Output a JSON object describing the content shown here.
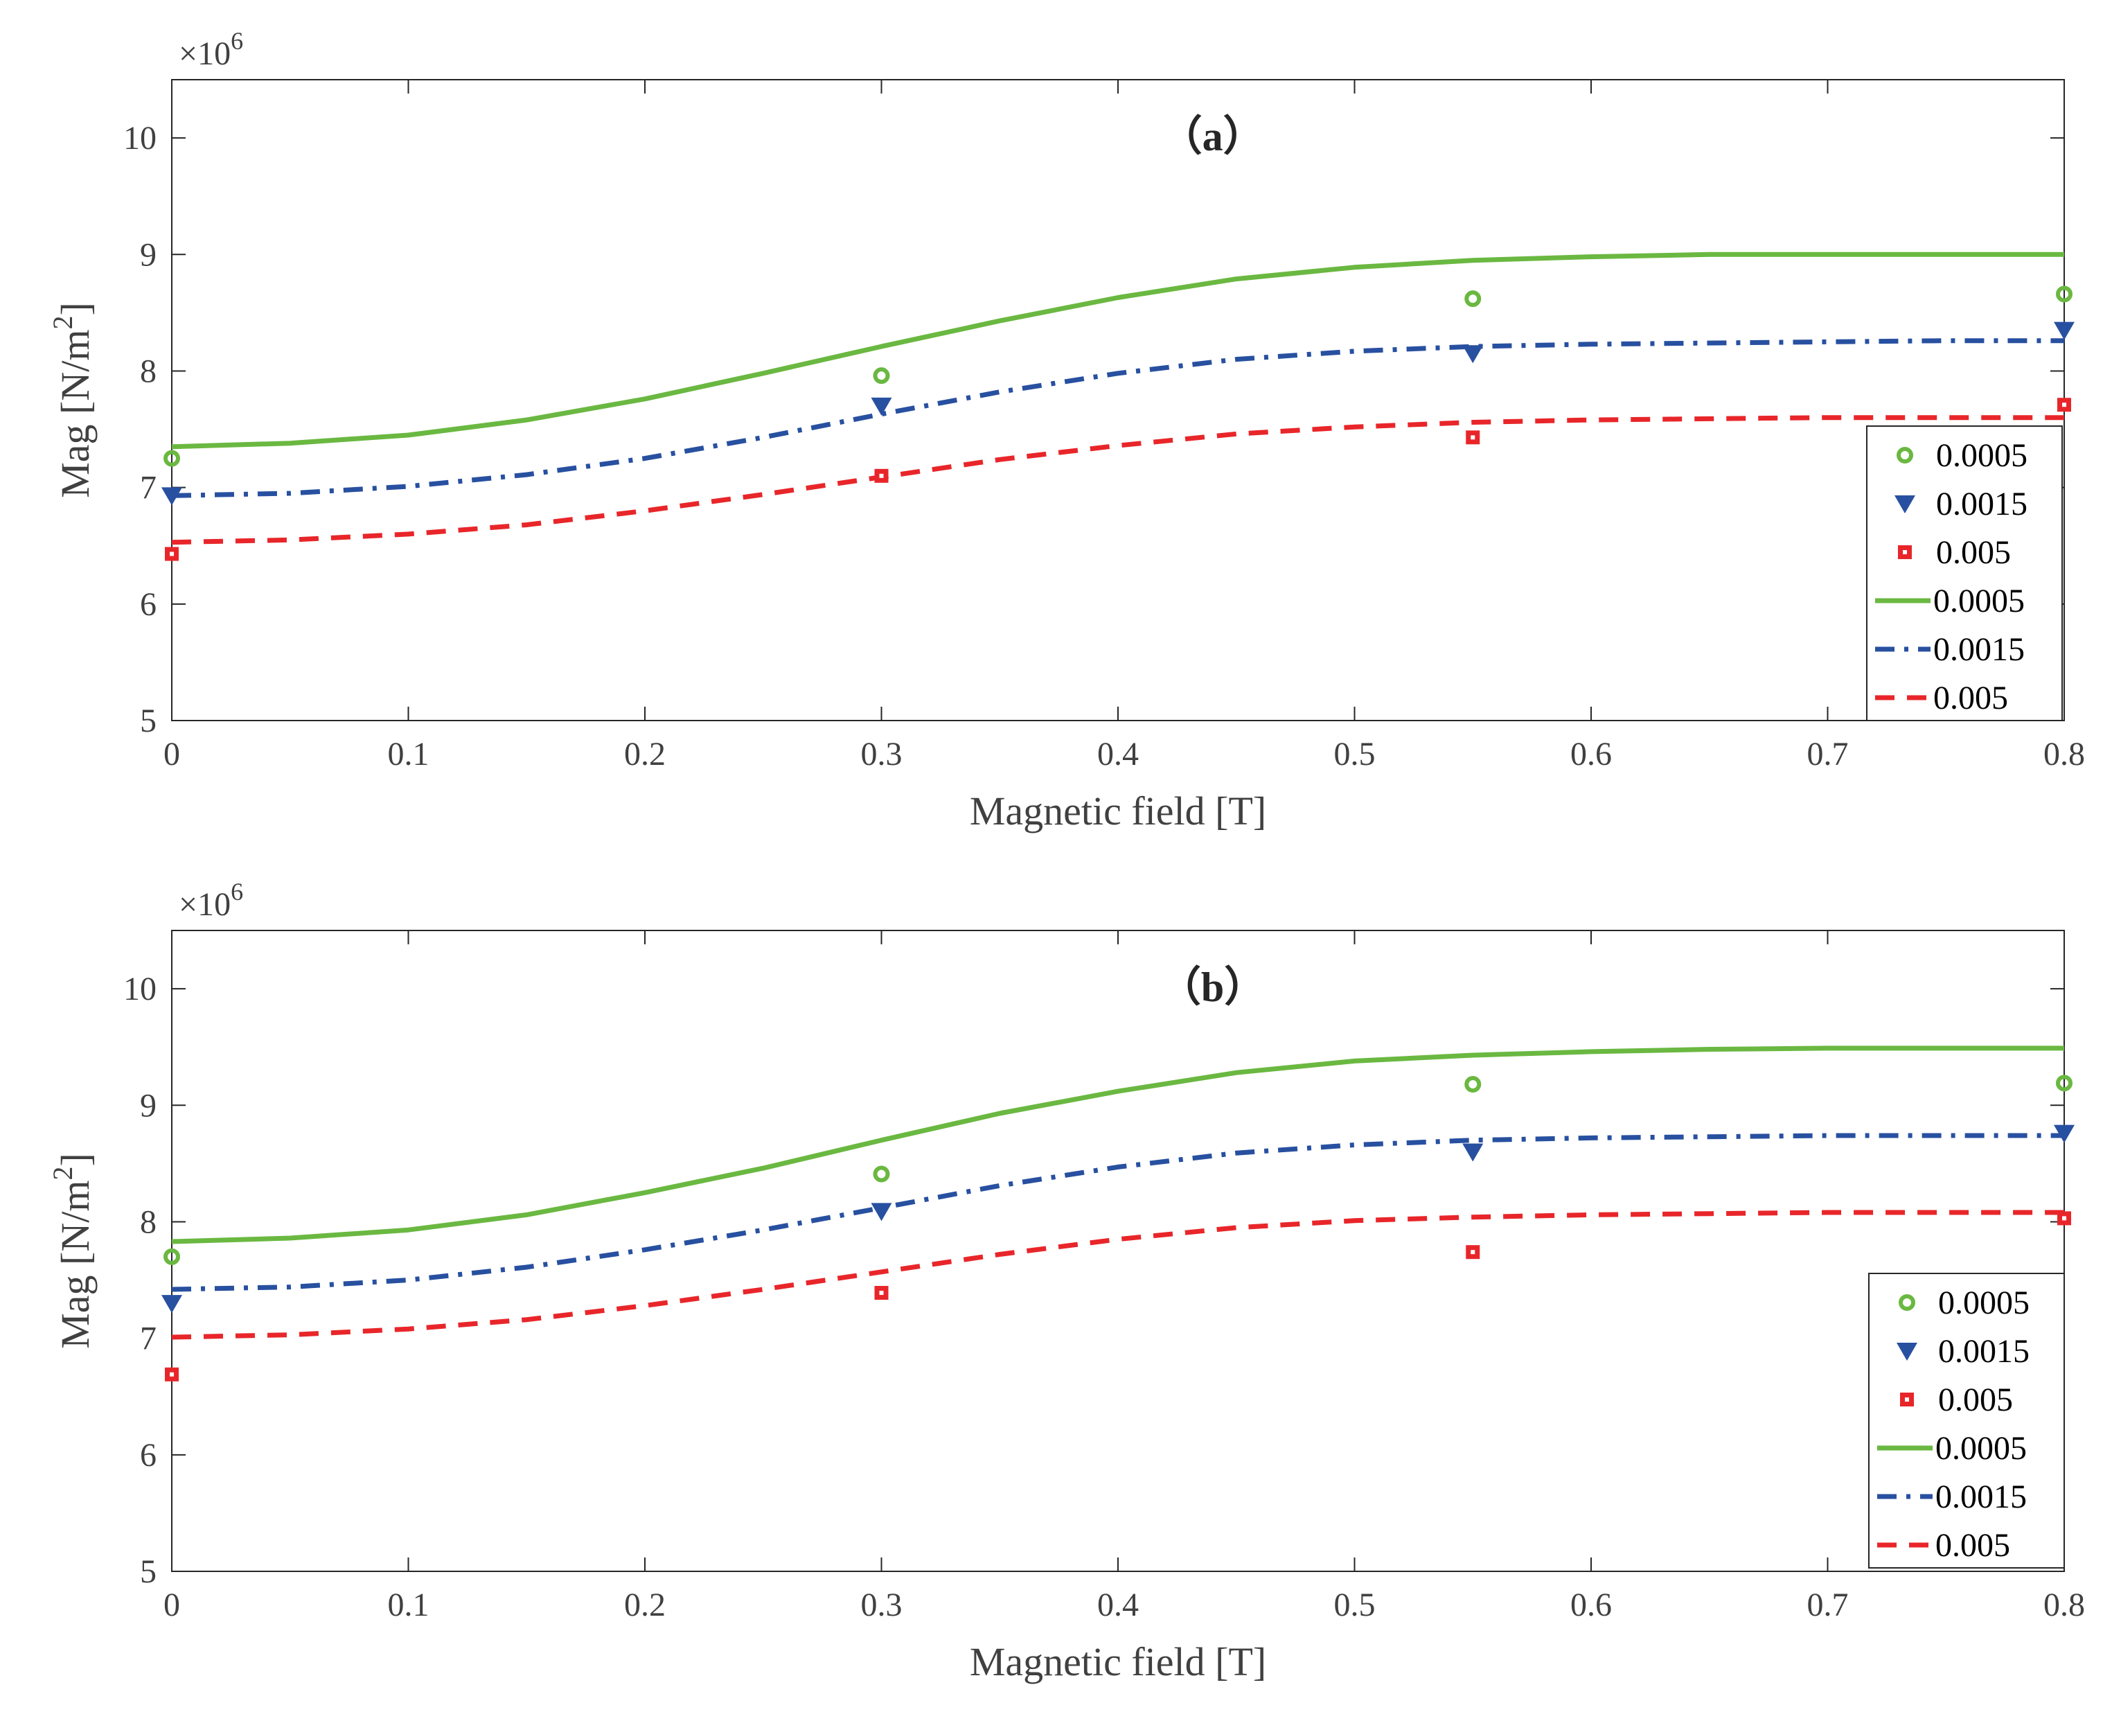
{
  "chart_data": [
    {
      "type": "scatter+line",
      "title": "（a）",
      "xlabel": "Magnetic field [T]",
      "ylabel": "Mag [N/m",
      "ylabel_sup": "2",
      "ylabel_tail": "]",
      "y_exponent_label": "×10",
      "y_exponent_sup": "6",
      "xlim": [
        0,
        0.8
      ],
      "ylim": [
        5,
        10.5
      ],
      "xticks": [
        0,
        0.1,
        0.2,
        0.3,
        0.4,
        0.5,
        0.6,
        0.7,
        0.8
      ],
      "xtick_labels": [
        "0",
        "0.1",
        "0.2",
        "0.3",
        "0.4",
        "0.5",
        "0.6",
        "0.7",
        "0.8"
      ],
      "yticks": [
        5,
        6,
        7,
        8,
        9,
        10
      ],
      "ytick_labels": [
        "5",
        "6",
        "7",
        "8",
        "9",
        "10"
      ],
      "legend_position": "bottom-right",
      "scatter_series": [
        {
          "name": "0.0005",
          "color": "#6ab841",
          "marker": "circle",
          "x": [
            0,
            0.3,
            0.55,
            0.8
          ],
          "y": [
            7.25,
            7.96,
            8.62,
            8.66
          ]
        },
        {
          "name": "0.0015",
          "color": "#2850a0",
          "marker": "triangle-down",
          "x": [
            0,
            0.3,
            0.55,
            0.8
          ],
          "y": [
            6.93,
            7.7,
            8.15,
            8.35
          ]
        },
        {
          "name": "0.005",
          "color": "#e8262a",
          "marker": "square",
          "x": [
            0,
            0.3,
            0.55,
            0.8
          ],
          "y": [
            6.43,
            7.1,
            7.43,
            7.71
          ]
        }
      ],
      "line_series": [
        {
          "name": "0.0005",
          "color": "#6ab841",
          "style": "solid",
          "x": [
            0,
            0.05,
            0.1,
            0.15,
            0.2,
            0.25,
            0.3,
            0.35,
            0.4,
            0.45,
            0.5,
            0.55,
            0.6,
            0.65,
            0.7,
            0.75,
            0.8
          ],
          "y": [
            7.35,
            7.38,
            7.45,
            7.58,
            7.76,
            7.98,
            8.21,
            8.43,
            8.63,
            8.79,
            8.89,
            8.95,
            8.98,
            9.0,
            9.0,
            9.0,
            9.0
          ]
        },
        {
          "name": "0.0015",
          "color": "#2850a0",
          "style": "dashdot",
          "x": [
            0,
            0.05,
            0.1,
            0.15,
            0.2,
            0.25,
            0.3,
            0.35,
            0.4,
            0.45,
            0.5,
            0.55,
            0.6,
            0.65,
            0.7,
            0.75,
            0.8
          ],
          "y": [
            6.93,
            6.95,
            7.01,
            7.11,
            7.25,
            7.43,
            7.63,
            7.82,
            7.98,
            8.1,
            8.17,
            8.21,
            8.23,
            8.24,
            8.25,
            8.26,
            8.26
          ]
        },
        {
          "name": "0.005",
          "color": "#e8262a",
          "style": "dashed",
          "x": [
            0,
            0.05,
            0.1,
            0.15,
            0.2,
            0.25,
            0.3,
            0.35,
            0.4,
            0.45,
            0.5,
            0.55,
            0.6,
            0.65,
            0.7,
            0.75,
            0.8
          ],
          "y": [
            6.53,
            6.55,
            6.6,
            6.68,
            6.8,
            6.94,
            7.09,
            7.24,
            7.36,
            7.46,
            7.52,
            7.56,
            7.58,
            7.59,
            7.6,
            7.6,
            7.6
          ]
        }
      ]
    },
    {
      "type": "scatter+line",
      "title": "（b）",
      "xlabel": "Magnetic field [T]",
      "ylabel": "Mag [N/m",
      "ylabel_sup": "2",
      "ylabel_tail": "]",
      "y_exponent_label": "×10",
      "y_exponent_sup": "6",
      "xlim": [
        0,
        0.8
      ],
      "ylim": [
        5,
        10.5
      ],
      "xticks": [
        0,
        0.1,
        0.2,
        0.3,
        0.4,
        0.5,
        0.6,
        0.7,
        0.8
      ],
      "xtick_labels": [
        "0",
        "0.1",
        "0.2",
        "0.3",
        "0.4",
        "0.5",
        "0.6",
        "0.7",
        "0.8"
      ],
      "yticks": [
        5,
        6,
        7,
        8,
        9,
        10
      ],
      "ytick_labels": [
        "5",
        "6",
        "7",
        "8",
        "9",
        "10"
      ],
      "legend_position": "bottom-right",
      "scatter_series": [
        {
          "name": "0.0005",
          "color": "#6ab841",
          "marker": "circle",
          "x": [
            0,
            0.3,
            0.55,
            0.8
          ],
          "y": [
            7.7,
            8.41,
            9.18,
            9.19
          ]
        },
        {
          "name": "0.0015",
          "color": "#2850a0",
          "marker": "triangle-down",
          "x": [
            0,
            0.3,
            0.55,
            0.8
          ],
          "y": [
            7.3,
            8.09,
            8.6,
            8.76
          ]
        },
        {
          "name": "0.005",
          "color": "#e8262a",
          "marker": "square",
          "x": [
            0,
            0.3,
            0.55,
            0.8
          ],
          "y": [
            6.69,
            7.39,
            7.74,
            8.03
          ]
        }
      ],
      "line_series": [
        {
          "name": "0.0005",
          "color": "#6ab841",
          "style": "solid",
          "x": [
            0,
            0.05,
            0.1,
            0.15,
            0.2,
            0.25,
            0.3,
            0.35,
            0.4,
            0.45,
            0.5,
            0.55,
            0.6,
            0.65,
            0.7,
            0.75,
            0.8
          ],
          "y": [
            7.83,
            7.86,
            7.93,
            8.06,
            8.25,
            8.46,
            8.7,
            8.93,
            9.12,
            9.28,
            9.38,
            9.43,
            9.46,
            9.48,
            9.49,
            9.49,
            9.49
          ]
        },
        {
          "name": "0.0015",
          "color": "#2850a0",
          "style": "dashdot",
          "x": [
            0,
            0.05,
            0.1,
            0.15,
            0.2,
            0.25,
            0.3,
            0.35,
            0.4,
            0.45,
            0.5,
            0.55,
            0.6,
            0.65,
            0.7,
            0.75,
            0.8
          ],
          "y": [
            7.42,
            7.44,
            7.5,
            7.61,
            7.76,
            7.93,
            8.12,
            8.31,
            8.47,
            8.59,
            8.66,
            8.7,
            8.72,
            8.73,
            8.74,
            8.74,
            8.74
          ]
        },
        {
          "name": "0.005",
          "color": "#e8262a",
          "style": "dashed",
          "x": [
            0,
            0.05,
            0.1,
            0.15,
            0.2,
            0.25,
            0.3,
            0.35,
            0.4,
            0.45,
            0.5,
            0.55,
            0.6,
            0.65,
            0.7,
            0.75,
            0.8
          ],
          "y": [
            7.01,
            7.03,
            7.08,
            7.16,
            7.28,
            7.42,
            7.57,
            7.72,
            7.85,
            7.95,
            8.01,
            8.04,
            8.06,
            8.07,
            8.08,
            8.08,
            8.08
          ]
        }
      ]
    }
  ]
}
